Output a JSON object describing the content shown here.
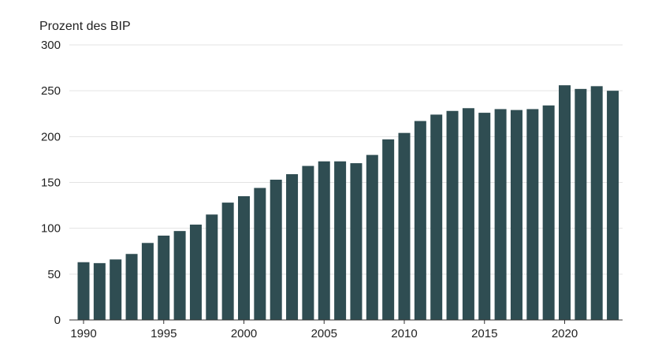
{
  "chart_data": {
    "type": "bar",
    "title": "",
    "xlabel": "",
    "ylabel": "Prozent des BIP",
    "ylim": [
      0,
      300
    ],
    "yticks": [
      0,
      50,
      100,
      150,
      200,
      250,
      300
    ],
    "xticks": [
      1990,
      1995,
      2000,
      2005,
      2010,
      2015,
      2020
    ],
    "grid": true,
    "color": "#2f4d52",
    "categories": [
      1990,
      1991,
      1992,
      1993,
      1994,
      1995,
      1996,
      1997,
      1998,
      1999,
      2000,
      2001,
      2002,
      2003,
      2004,
      2005,
      2006,
      2007,
      2008,
      2009,
      2010,
      2011,
      2012,
      2013,
      2014,
      2015,
      2016,
      2017,
      2018,
      2019,
      2020,
      2021,
      2022,
      2023
    ],
    "values": [
      63,
      62,
      66,
      72,
      84,
      92,
      97,
      104,
      115,
      128,
      135,
      144,
      153,
      159,
      168,
      173,
      173,
      171,
      180,
      197,
      204,
      217,
      224,
      228,
      231,
      226,
      230,
      229,
      230,
      234,
      256,
      252,
      255,
      250
    ]
  }
}
